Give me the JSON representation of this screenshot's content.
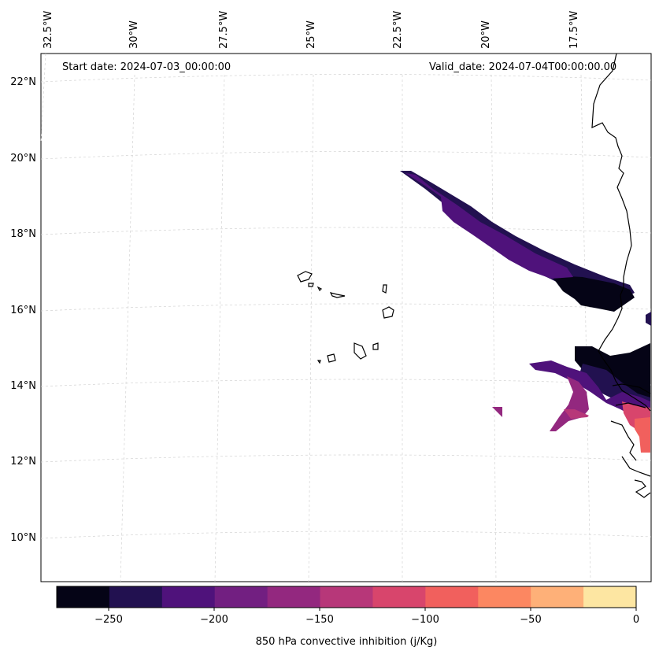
{
  "map": {
    "start_date": "Start date: 2024-07-03_00:00:00",
    "valid_date": "Valid_date: 2024-07-04T00:00:00.00",
    "lon_labels": [
      "32.5°W",
      "30°W",
      "27.5°W",
      "25°W",
      "22.5°W",
      "20°W",
      "17.5°W"
    ],
    "lat_labels": [
      "22°N",
      "20°N",
      "18°N",
      "16°N",
      "14°N",
      "12°N",
      "10°N"
    ],
    "colorbar": {
      "label": "850 hPa convective inhibition (j/Kg)",
      "tick_labels": [
        "−250",
        "−200",
        "−150",
        "−100",
        "−50",
        "0"
      ],
      "colors": [
        "#050416",
        "#221150",
        "#4f127b",
        "#721f81",
        "#93287f",
        "#b73779",
        "#d8456c",
        "#f1605d",
        "#fc8761",
        "#feb078",
        "#fde6a2"
      ]
    },
    "coastline_color": "#000000",
    "grid": true
  }
}
